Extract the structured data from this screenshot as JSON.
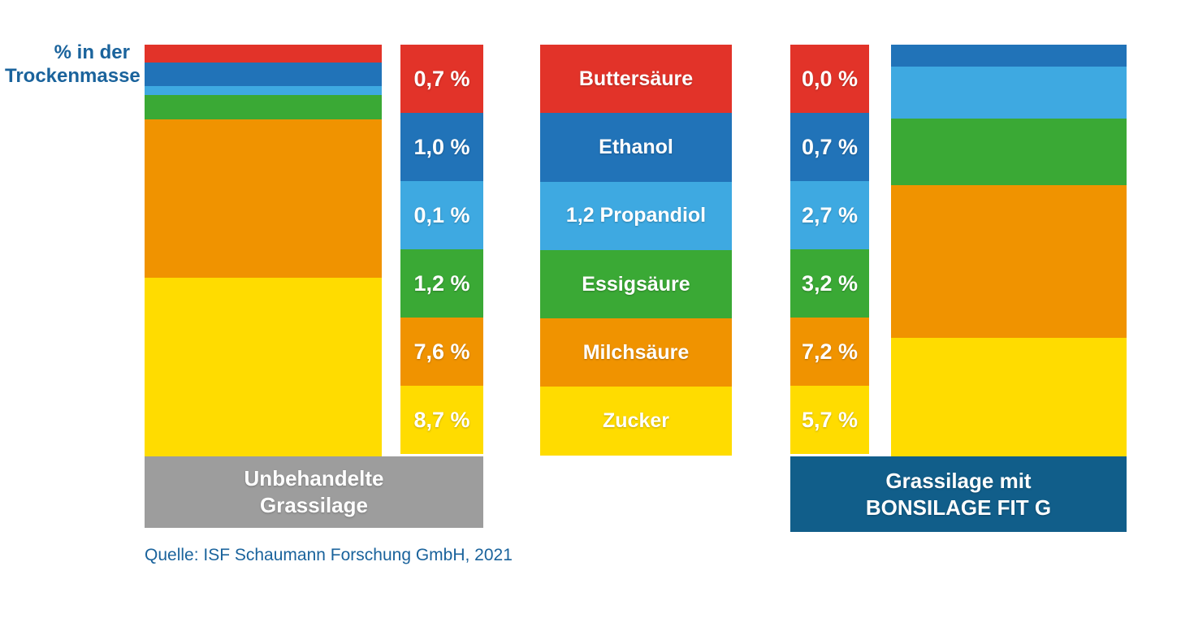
{
  "palette": {
    "text_blue": "#1a639c",
    "background": "#ffffff"
  },
  "chart_data": {
    "type": "bar",
    "subtype": "stacked-bar-comparison",
    "title": "",
    "unit_label": "% in der Trockenmasse",
    "unit_label_lines": [
      "% in der",
      "Trockenmasse"
    ],
    "ylabel": "% in der Trockenmasse",
    "legend_position": "center-between-bars",
    "grid": false,
    "categories": [
      {
        "name": "Buttersäure",
        "slug": "buttersaeure",
        "color": "#e23329"
      },
      {
        "name": "Ethanol",
        "slug": "ethanol",
        "color": "#2173b8"
      },
      {
        "name": "1,2 Propandiol",
        "slug": "propandiol",
        "color": "#3ea9e1"
      },
      {
        "name": "Essigsäure",
        "slug": "essigsaeure",
        "color": "#3aa935"
      },
      {
        "name": "Milchsäure",
        "slug": "milchsaeure",
        "color": "#f09300"
      },
      {
        "name": "Zucker",
        "slug": "zucker",
        "color": "#ffdc00"
      }
    ],
    "series": [
      {
        "name": "Unbehandelte Grassilage",
        "box_lines": [
          "Unbehandelte",
          "Grassilage"
        ],
        "box_color": "#9d9d9d",
        "values": [
          0.7,
          1.0,
          0.1,
          1.2,
          7.6,
          8.7
        ],
        "labels": [
          "0,7 %",
          "1,0 %",
          "0,1 %",
          "1,2 %",
          "7,6 %",
          "8,7 %"
        ]
      },
      {
        "name": "Grassilage mit BONSILAGE FIT G",
        "box_lines": [
          "Grassilage mit",
          "BONSILAGE FIT G"
        ],
        "box_color": "#115e8a",
        "values": [
          0.0,
          0.7,
          2.7,
          3.2,
          7.2,
          5.7
        ],
        "labels": [
          "0,0 %",
          "0,7 %",
          "2,7 %",
          "3,2 %",
          "7,2 %",
          "5,7 %"
        ]
      }
    ],
    "source": "Quelle: ISF Schaumann Forschung GmbH, 2021"
  }
}
